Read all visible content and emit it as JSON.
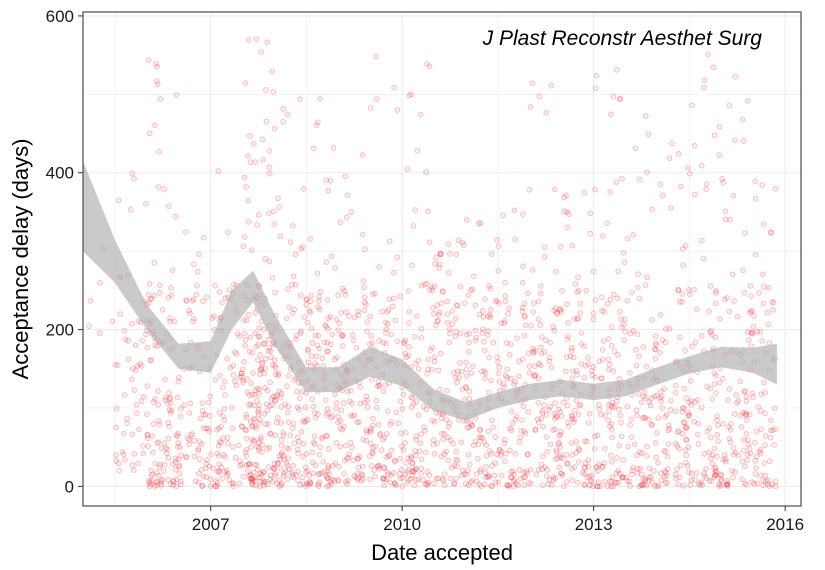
{
  "chart_data": {
    "type": "scatter",
    "title": "J Plast Reconstr Aesthet Surg",
    "xlabel": "Date accepted",
    "ylabel": "Acceptance delay (days)",
    "xlim": [
      "2005-01-01",
      "2016-04-01"
    ],
    "ylim": [
      -25,
      605
    ],
    "x_ticks": [
      "2007",
      "2010",
      "2013",
      "2016"
    ],
    "y_ticks": [
      0,
      200,
      400,
      600
    ],
    "grid": true,
    "legend": "none",
    "colors": {
      "points": "#e8202a",
      "band": "#b3b3b3",
      "grid": "#ebebeb",
      "frame": "#4d4d4d"
    },
    "scatter_summary": {
      "x_range": [
        "2005-01-01",
        "2015-11-15"
      ],
      "approx_point_count": 2400,
      "bins": [
        {
          "start": "2005-01-01",
          "end": "2005-07-01",
          "count": 6,
          "lo": 150,
          "hi": 330
        },
        {
          "start": "2005-07-01",
          "end": "2006-01-01",
          "count": 55,
          "lo": 20,
          "hi": 400
        },
        {
          "start": "2006-01-01",
          "end": "2006-07-01",
          "count": 130,
          "lo": 0,
          "hi": 560
        },
        {
          "start": "2006-07-01",
          "end": "2007-01-01",
          "count": 80,
          "lo": 0,
          "hi": 330
        },
        {
          "start": "2007-01-01",
          "end": "2007-07-01",
          "count": 90,
          "lo": 0,
          "hi": 420
        },
        {
          "start": "2007-07-01",
          "end": "2008-01-01",
          "count": 200,
          "lo": 0,
          "hi": 580
        },
        {
          "start": "2008-01-01",
          "end": "2008-07-01",
          "count": 140,
          "lo": 0,
          "hi": 500
        },
        {
          "start": "2008-07-01",
          "end": "2009-01-01",
          "count": 130,
          "lo": 0,
          "hi": 500
        },
        {
          "start": "2009-01-01",
          "end": "2009-07-01",
          "count": 110,
          "lo": 0,
          "hi": 430
        },
        {
          "start": "2009-07-01",
          "end": "2010-01-01",
          "count": 110,
          "lo": 0,
          "hi": 565
        },
        {
          "start": "2010-01-01",
          "end": "2010-07-01",
          "count": 110,
          "lo": 0,
          "hi": 550
        },
        {
          "start": "2010-07-01",
          "end": "2011-01-01",
          "count": 110,
          "lo": 0,
          "hi": 330
        },
        {
          "start": "2011-01-01",
          "end": "2011-07-01",
          "count": 110,
          "lo": 0,
          "hi": 360
        },
        {
          "start": "2011-07-01",
          "end": "2012-01-01",
          "count": 110,
          "lo": 0,
          "hi": 380
        },
        {
          "start": "2012-01-01",
          "end": "2012-07-01",
          "count": 110,
          "lo": 0,
          "hi": 525
        },
        {
          "start": "2012-07-01",
          "end": "2013-01-01",
          "count": 110,
          "lo": 0,
          "hi": 380
        },
        {
          "start": "2013-01-01",
          "end": "2013-07-01",
          "count": 110,
          "lo": 0,
          "hi": 535
        },
        {
          "start": "2013-07-01",
          "end": "2014-01-01",
          "count": 100,
          "lo": 0,
          "hi": 500
        },
        {
          "start": "2014-01-01",
          "end": "2014-07-01",
          "count": 100,
          "lo": 0,
          "hi": 440
        },
        {
          "start": "2014-07-01",
          "end": "2015-01-01",
          "count": 100,
          "lo": 0,
          "hi": 560
        },
        {
          "start": "2015-01-01",
          "end": "2015-07-01",
          "count": 100,
          "lo": 0,
          "hi": 535
        },
        {
          "start": "2015-07-01",
          "end": "2015-11-15",
          "count": 70,
          "lo": 0,
          "hi": 400
        }
      ]
    },
    "smooth": {
      "x": [
        "2005-01-01",
        "2005-07-01",
        "2006-01-01",
        "2006-07-01",
        "2007-01-01",
        "2007-05-01",
        "2007-09-01",
        "2008-01-01",
        "2008-07-01",
        "2009-01-01",
        "2009-07-01",
        "2010-01-01",
        "2010-07-01",
        "2011-01-01",
        "2011-07-01",
        "2012-01-01",
        "2012-07-01",
        "2013-01-01",
        "2013-07-01",
        "2014-01-01",
        "2014-07-01",
        "2015-01-01",
        "2015-07-01",
        "2015-11-15"
      ],
      "y": [
        355,
        285,
        215,
        165,
        165,
        225,
        255,
        200,
        135,
        135,
        160,
        145,
        110,
        95,
        110,
        120,
        125,
        120,
        125,
        140,
        155,
        165,
        160,
        155
      ],
      "lower": [
        300,
        260,
        200,
        150,
        145,
        200,
        235,
        180,
        120,
        120,
        140,
        128,
        96,
        84,
        100,
        110,
        115,
        110,
        115,
        130,
        144,
        152,
        145,
        130
      ],
      "upper": [
        415,
        315,
        232,
        182,
        185,
        250,
        275,
        220,
        152,
        152,
        178,
        162,
        124,
        107,
        120,
        131,
        136,
        131,
        136,
        152,
        166,
        178,
        177,
        182
      ]
    }
  }
}
